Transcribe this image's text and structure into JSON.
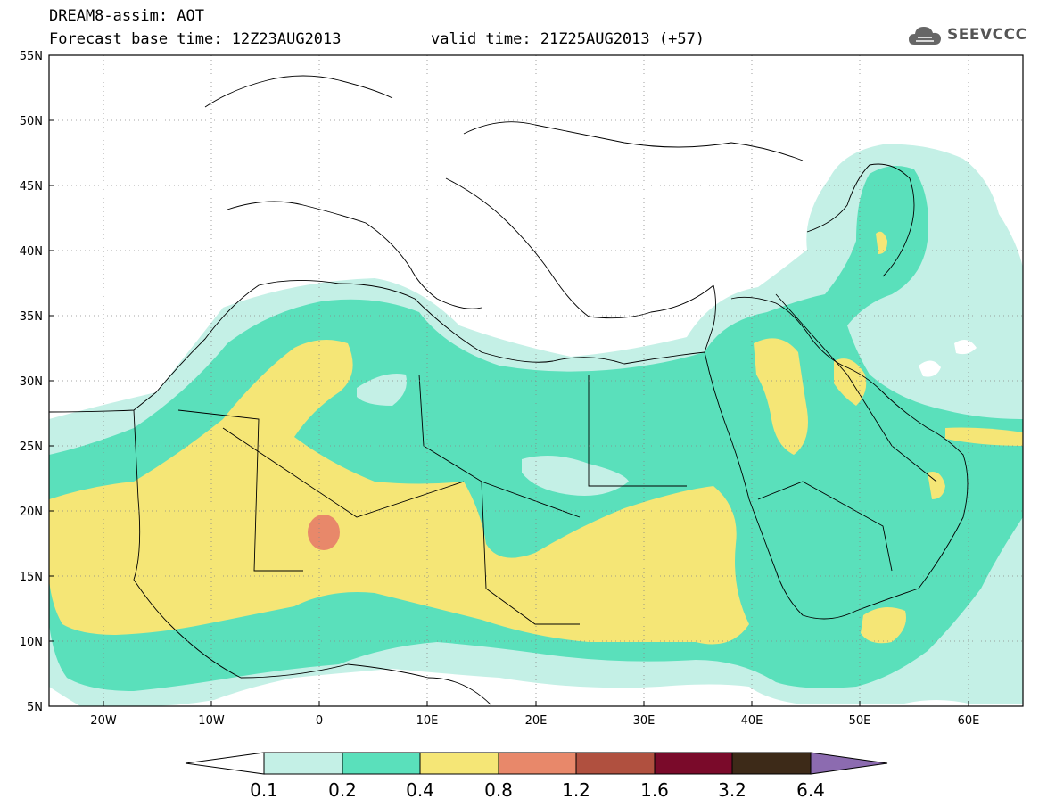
{
  "header": {
    "title": "DREAM8-assim: AOT",
    "base_time": "Forecast base time: 12Z23AUG2013",
    "valid_time": "valid time: 21Z25AUG2013 (+57)",
    "logo_text": "SEEVCCC"
  },
  "map": {
    "lon_range": [
      -25,
      65
    ],
    "lat_range": [
      5,
      55
    ],
    "lat_ticks": [
      "55N",
      "50N",
      "45N",
      "40N",
      "35N",
      "30N",
      "25N",
      "20N",
      "15N",
      "10N",
      "5N"
    ],
    "lon_ticks": [
      "20W",
      "10W",
      "0",
      "10E",
      "20E",
      "30E",
      "40E",
      "50E",
      "60E"
    ],
    "grid": "dotted"
  },
  "colorbar": {
    "levels": [
      "0.1",
      "0.2",
      "0.4",
      "0.8",
      "1.2",
      "1.6",
      "3.2",
      "6.4"
    ],
    "colors": [
      "#c4f0e6",
      "#5ae0bb",
      "#f5e676",
      "#e8886a",
      "#b0503f",
      "#7a0a2a",
      "#3d2a18",
      "#8c6bb0"
    ]
  }
}
